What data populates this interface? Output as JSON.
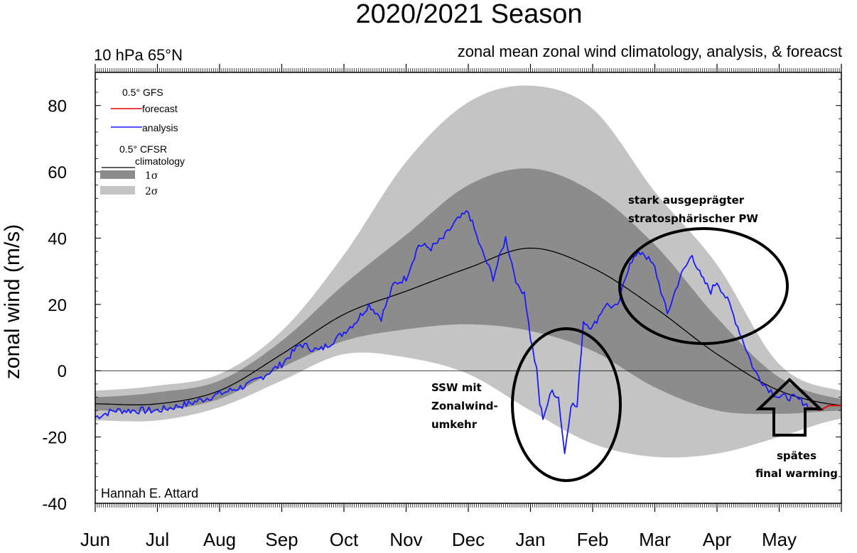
{
  "chart_data": {
    "type": "line",
    "title": "2020/2021 Season",
    "subtitle_left": "10 hPa 65°N",
    "subtitle_right": "zonal mean zonal wind climatology, analysis, & foreacst",
    "ylabel": "zonal wind (m/s)",
    "ylim": [
      -40,
      90
    ],
    "yticks": [
      80,
      60,
      40,
      20,
      0,
      -20,
      -40
    ],
    "x_months": [
      "Jun",
      "Jul",
      "Aug",
      "Sep",
      "Oct",
      "Nov",
      "Dec",
      "Jan",
      "Feb",
      "Mar",
      "Apr",
      "May"
    ],
    "credit": "Hannah E. Attard",
    "legend": {
      "gfs_header": "0.5°  GFS",
      "forecast": "forecast",
      "analysis": "analysis",
      "cfsr_header": "0.5° CFSR",
      "climatology": "climatology",
      "sigma1": "1σ",
      "sigma2": "2σ"
    },
    "colors": {
      "analysis": "#1a1aff",
      "forecast": "#e60000",
      "climatology": "#000000",
      "band1": "#8c8c8c",
      "band2": "#c4c4c4"
    },
    "climatology": {
      "month_index": [
        0,
        1,
        2,
        3,
        4,
        5,
        6,
        7,
        8,
        9,
        10,
        11,
        12
      ],
      "mean": [
        -10,
        -10,
        -6,
        5,
        17,
        24,
        31,
        37,
        31,
        19,
        5,
        -6,
        -10.5
      ],
      "sd1_upper": [
        -8,
        -6.5,
        -3,
        9,
        26,
        41,
        56,
        61,
        54,
        38,
        16,
        -2,
        -8.5
      ],
      "sd1_lower": [
        -12,
        -12,
        -8.5,
        1,
        9,
        12.5,
        14,
        12,
        6,
        -5,
        -12,
        -13,
        -12
      ],
      "sd2_upper": [
        -6,
        -4.5,
        -1,
        12,
        35,
        63,
        81,
        86,
        79,
        54,
        32,
        2,
        -6
      ],
      "sd2_lower": [
        -15,
        -15,
        -11,
        -3,
        5,
        4,
        -1,
        -12,
        -22,
        -26,
        -25,
        -20,
        -14.5
      ]
    },
    "analysis": {
      "month_index": [
        0,
        0.3,
        0.6,
        1,
        1.5,
        2,
        2.5,
        3,
        3.3,
        3.6,
        3.9,
        4.2,
        4.4,
        4.6,
        4.8,
        5,
        5.2,
        5.4,
        5.6,
        5.8,
        6,
        6.2,
        6.4,
        6.6,
        6.8,
        6.9,
        7,
        7.1,
        7.15,
        7.2,
        7.35,
        7.45,
        7.55,
        7.65,
        7.75,
        7.85,
        8,
        8.2,
        8.4,
        8.6,
        8.8,
        9,
        9.2,
        9.4,
        9.6,
        9.75,
        9.9,
        10,
        10.2,
        10.4,
        10.6,
        10.8,
        11,
        11.2,
        11.35,
        11.5
      ],
      "values": [
        -14,
        -12,
        -12,
        -12,
        -10,
        -7,
        -4,
        2,
        8,
        6,
        10,
        15,
        20,
        16,
        26,
        28,
        38,
        37,
        40,
        45,
        48,
        37,
        28,
        40,
        25,
        24,
        10,
        0,
        -10,
        -14,
        -6,
        -8,
        -25,
        -10,
        -11,
        15,
        13,
        20,
        19,
        33,
        36,
        31,
        17,
        28,
        35,
        28,
        24,
        27,
        20,
        10,
        0,
        -5,
        -8,
        -8,
        -9,
        -11
      ]
    },
    "forecast": {
      "month_index": [
        11.5,
        11.65,
        11.8,
        12
      ],
      "values": [
        -11,
        -12,
        -10.5,
        -10.5
      ]
    },
    "annotations": {
      "ssw": [
        "SSW mit",
        "Zonalwind-",
        "umkehr"
      ],
      "pw": [
        "stark ausgeprägter",
        "stratosphärischer PW"
      ],
      "final": [
        "spätes",
        "final warming"
      ]
    }
  }
}
